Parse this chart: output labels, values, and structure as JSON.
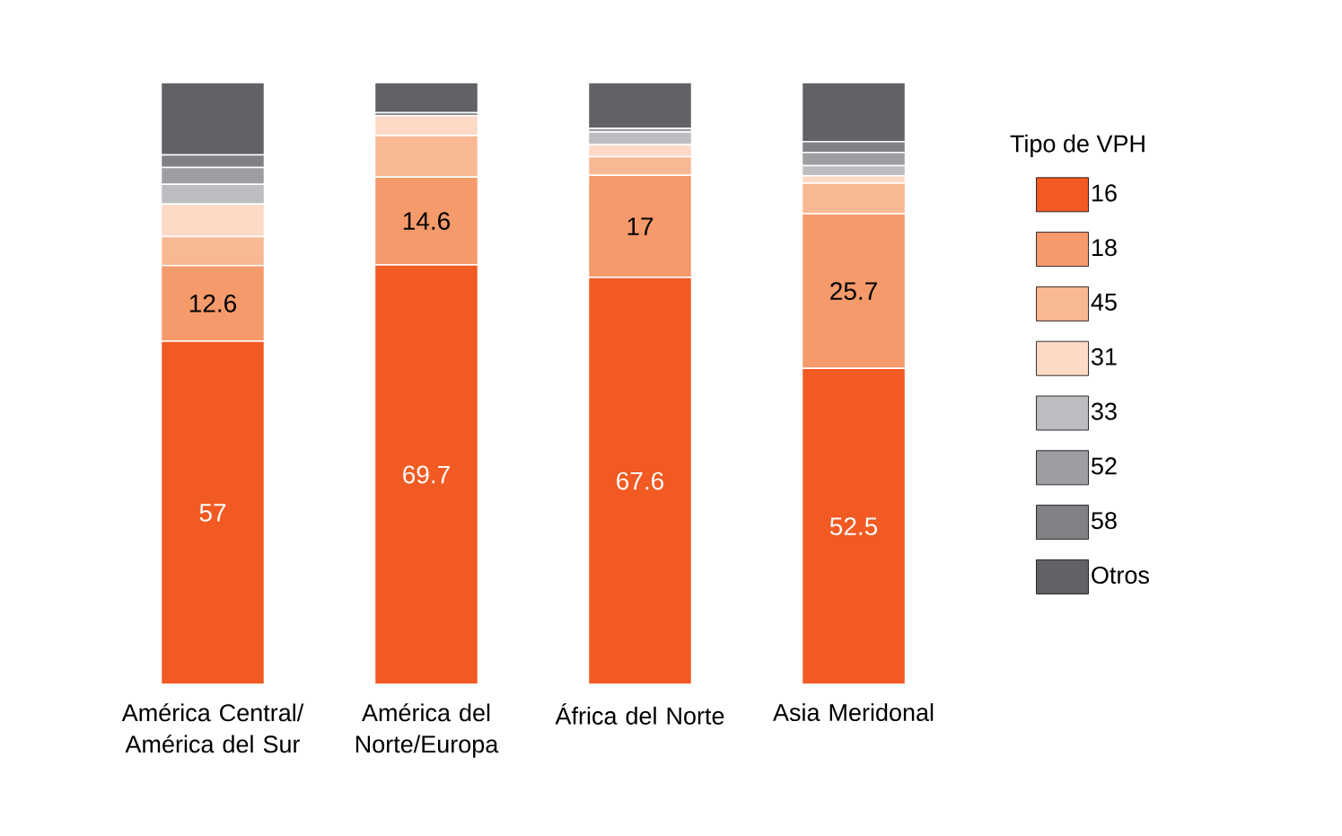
{
  "chart_data": {
    "type": "bar",
    "stacked": true,
    "legend": "right",
    "legend_title": "Tipo de VPH",
    "categories": [
      "América Central/ América del Sur",
      "América del Norte/Europa",
      "África del Norte",
      "Asia Meridonal"
    ],
    "series": [
      {
        "name": "16",
        "color": "#f15a22",
        "values": [
          57,
          69.7,
          67.6,
          52.5
        ],
        "value_labels": [
          "57",
          "69.7",
          "67.6",
          "52.5"
        ]
      },
      {
        "name": "18",
        "color": "#f59a6b",
        "values": [
          12.6,
          14.6,
          17,
          25.7
        ],
        "value_labels": [
          "12.6",
          "14.6",
          "17",
          "25.7"
        ]
      },
      {
        "name": "45",
        "color": "#f8b893",
        "values": [
          4.8,
          6.9,
          3.1,
          5.1
        ]
      },
      {
        "name": "31",
        "color": "#fcdac6",
        "values": [
          5.4,
          3.3,
          2.0,
          1.2
        ]
      },
      {
        "name": "33",
        "color": "#bcbdc0",
        "values": [
          3.3,
          0,
          2.1,
          1.7
        ]
      },
      {
        "name": "52",
        "color": "#9d9ea1",
        "values": [
          2.8,
          0,
          0.6,
          2.2
        ]
      },
      {
        "name": "58",
        "color": "#808184",
        "values": [
          2.1,
          0.5,
          0,
          1.8
        ]
      },
      {
        "name": "Otros",
        "color": "#616266",
        "values": [
          12.0,
          5.0,
          7.6,
          9.8
        ]
      }
    ]
  }
}
